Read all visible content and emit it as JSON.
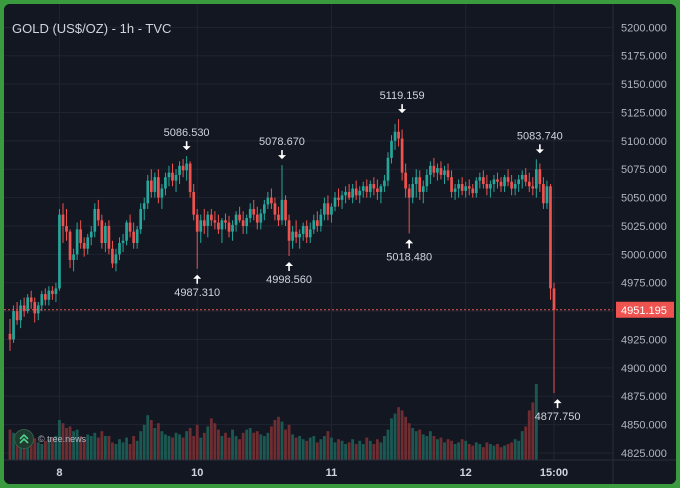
{
  "chart_data": {
    "type": "candlestick",
    "title": "GOLD (US$/OZ) - 1h - TVC",
    "ylim": [
      4825,
      5210
    ],
    "y_ticks": [
      5200,
      5175,
      5150,
      5125,
      5100,
      5075,
      5050,
      5025,
      5000,
      4975,
      4950,
      4925,
      4900,
      4875,
      4850,
      4825
    ],
    "y_tick_labels": [
      "5200.000",
      "5175.000",
      "5150.000",
      "5125.000",
      "5100.000",
      "5075.000",
      "5050.000",
      "5025.000",
      "5000.000",
      "4975.000",
      "4950.000",
      "4925.000",
      "4900.000",
      "4875.000",
      "4850.000",
      "4825.000"
    ],
    "x_ticks": [
      {
        "label": "8",
        "index": 14
      },
      {
        "label": "10",
        "index": 53
      },
      {
        "label": "11",
        "index": 91
      },
      {
        "label": "12",
        "index": 129
      },
      {
        "label": "15:00",
        "index": 154
      }
    ],
    "current_price": 4951.195,
    "current_price_label": "4951.195",
    "annotations": [
      {
        "label": "5086.530",
        "index": 50,
        "value": 5086.53,
        "direction": "down"
      },
      {
        "label": "4987.310",
        "index": 53,
        "value": 4987.31,
        "direction": "up"
      },
      {
        "label": "5078.670",
        "index": 77,
        "value": 5078.67,
        "direction": "down"
      },
      {
        "label": "4998.560",
        "index": 79,
        "value": 4998.56,
        "direction": "up"
      },
      {
        "label": "5119.159",
        "index": 111,
        "value": 5119.159,
        "direction": "down"
      },
      {
        "label": "5018.480",
        "index": 113,
        "value": 5018.48,
        "direction": "up"
      },
      {
        "label": "5083.740",
        "index": 150,
        "value": 5083.74,
        "direction": "down"
      },
      {
        "label": "4877.750",
        "index": 155,
        "value": 4877.75,
        "direction": "up"
      }
    ],
    "candles": [
      [
        4930,
        4943,
        4915,
        4925
      ],
      [
        4925,
        4955,
        4922,
        4950
      ],
      [
        4950,
        4958,
        4938,
        4942
      ],
      [
        4942,
        4960,
        4935,
        4955
      ],
      [
        4955,
        4962,
        4945,
        4950
      ],
      [
        4950,
        4965,
        4948,
        4962
      ],
      [
        4962,
        4968,
        4952,
        4958
      ],
      [
        4958,
        4962,
        4940,
        4948
      ],
      [
        4948,
        4958,
        4942,
        4955
      ],
      [
        4955,
        4968,
        4950,
        4965
      ],
      [
        4965,
        4970,
        4955,
        4960
      ],
      [
        4960,
        4972,
        4955,
        4968
      ],
      [
        4968,
        4972,
        4960,
        4965
      ],
      [
        4965,
        4975,
        4958,
        4970
      ],
      [
        4970,
        5040,
        4968,
        5035
      ],
      [
        5035,
        5045,
        5010,
        5025
      ],
      [
        5025,
        5040,
        5012,
        5020
      ],
      [
        5020,
        5022,
        4988,
        4995
      ],
      [
        4995,
        5005,
        4985,
        5000
      ],
      [
        5000,
        5028,
        4995,
        5022
      ],
      [
        5022,
        5030,
        5005,
        5010
      ],
      [
        5010,
        5015,
        4998,
        5005
      ],
      [
        5005,
        5018,
        5000,
        5015
      ],
      [
        5015,
        5025,
        5008,
        5020
      ],
      [
        5020,
        5045,
        5015,
        5040
      ],
      [
        5040,
        5048,
        5025,
        5030
      ],
      [
        5030,
        5035,
        5005,
        5010
      ],
      [
        5010,
        5028,
        5002,
        5025
      ],
      [
        5025,
        5030,
        5000,
        5005
      ],
      [
        5005,
        5012,
        4988,
        4992
      ],
      [
        4992,
        5005,
        4985,
        5000
      ],
      [
        5000,
        5015,
        4995,
        5010
      ],
      [
        5010,
        5018,
        5002,
        5012
      ],
      [
        5012,
        5030,
        5008,
        5028
      ],
      [
        5028,
        5035,
        5015,
        5020
      ],
      [
        5020,
        5028,
        5005,
        5010
      ],
      [
        5010,
        5025,
        5005,
        5022
      ],
      [
        5022,
        5045,
        5018,
        5040
      ],
      [
        5040,
        5050,
        5030,
        5045
      ],
      [
        5045,
        5070,
        5040,
        5065
      ],
      [
        5065,
        5075,
        5050,
        5055
      ],
      [
        5055,
        5072,
        5050,
        5068
      ],
      [
        5068,
        5075,
        5045,
        5050
      ],
      [
        5050,
        5062,
        5040,
        5058
      ],
      [
        5058,
        5072,
        5052,
        5068
      ],
      [
        5068,
        5078,
        5060,
        5072
      ],
      [
        5072,
        5080,
        5060,
        5065
      ],
      [
        5065,
        5075,
        5055,
        5070
      ],
      [
        5070,
        5082,
        5062,
        5078
      ],
      [
        5078,
        5084,
        5068,
        5074
      ],
      [
        5074,
        5086.53,
        5065,
        5080
      ],
      [
        5080,
        5082,
        5050,
        5055
      ],
      [
        5055,
        5062,
        5030,
        5035
      ],
      [
        5035,
        5040,
        4987.31,
        5020
      ],
      [
        5020,
        5035,
        5010,
        5030
      ],
      [
        5030,
        5040,
        5018,
        5025
      ],
      [
        5025,
        5038,
        5015,
        5035
      ],
      [
        5035,
        5040,
        5025,
        5030
      ],
      [
        5030,
        5038,
        5022,
        5028
      ],
      [
        5028,
        5035,
        5018,
        5022
      ],
      [
        5022,
        5032,
        5010,
        5030
      ],
      [
        5030,
        5036,
        5022,
        5028
      ],
      [
        5028,
        5034,
        5015,
        5020
      ],
      [
        5020,
        5030,
        5012,
        5026
      ],
      [
        5026,
        5038,
        5020,
        5035
      ],
      [
        5035,
        5042,
        5028,
        5030
      ],
      [
        5030,
        5038,
        5018,
        5025
      ],
      [
        5025,
        5035,
        5018,
        5032
      ],
      [
        5032,
        5045,
        5028,
        5040
      ],
      [
        5040,
        5048,
        5030,
        5035
      ],
      [
        5035,
        5042,
        5022,
        5028
      ],
      [
        5028,
        5040,
        5022,
        5036
      ],
      [
        5036,
        5048,
        5030,
        5044
      ],
      [
        5044,
        5055,
        5040,
        5050
      ],
      [
        5050,
        5058,
        5040,
        5045
      ],
      [
        5045,
        5050,
        5030,
        5035
      ],
      [
        5035,
        5042,
        5025,
        5030
      ],
      [
        5030,
        5078.67,
        5026,
        5048
      ],
      [
        5048,
        5052,
        5025,
        5030
      ],
      [
        5030,
        5035,
        4998.56,
        5012
      ],
      [
        5012,
        5025,
        5005,
        5020
      ],
      [
        5020,
        5030,
        5010,
        5015
      ],
      [
        5015,
        5022,
        5005,
        5018
      ],
      [
        5018,
        5028,
        5012,
        5025
      ],
      [
        5025,
        5030,
        5010,
        5015
      ],
      [
        5015,
        5028,
        5010,
        5022
      ],
      [
        5022,
        5035,
        5018,
        5030
      ],
      [
        5030,
        5038,
        5020,
        5025
      ],
      [
        5025,
        5040,
        5020,
        5035
      ],
      [
        5035,
        5050,
        5030,
        5045
      ],
      [
        5045,
        5052,
        5030,
        5035
      ],
      [
        5035,
        5045,
        5028,
        5042
      ],
      [
        5042,
        5055,
        5038,
        5050
      ],
      [
        5050,
        5058,
        5042,
        5048
      ],
      [
        5048,
        5056,
        5040,
        5052
      ],
      [
        5052,
        5060,
        5045,
        5055
      ],
      [
        5055,
        5062,
        5048,
        5050
      ],
      [
        5050,
        5062,
        5045,
        5058
      ],
      [
        5058,
        5065,
        5048,
        5052
      ],
      [
        5052,
        5060,
        5045,
        5056
      ],
      [
        5056,
        5064,
        5050,
        5060
      ],
      [
        5060,
        5066,
        5050,
        5055
      ],
      [
        5055,
        5065,
        5050,
        5062
      ],
      [
        5062,
        5068,
        5052,
        5058
      ],
      [
        5058,
        5066,
        5048,
        5055
      ],
      [
        5055,
        5062,
        5045,
        5060
      ],
      [
        5060,
        5070,
        5055,
        5065
      ],
      [
        5065,
        5090,
        5060,
        5085
      ],
      [
        5085,
        5105,
        5080,
        5100
      ],
      [
        5100,
        5115,
        5092,
        5108
      ],
      [
        5108,
        5119.159,
        5095,
        5102
      ],
      [
        5102,
        5110,
        5065,
        5072
      ],
      [
        5072,
        5080,
        5050,
        5058
      ],
      [
        5058,
        5062,
        5018.48,
        5050
      ],
      [
        5050,
        5068,
        5045,
        5062
      ],
      [
        5062,
        5075,
        5050,
        5068
      ],
      [
        5068,
        5074,
        5048,
        5055
      ],
      [
        5055,
        5065,
        5045,
        5060
      ],
      [
        5060,
        5075,
        5055,
        5070
      ],
      [
        5070,
        5082,
        5062,
        5078
      ],
      [
        5078,
        5085,
        5068,
        5072
      ],
      [
        5072,
        5080,
        5065,
        5076
      ],
      [
        5076,
        5082,
        5066,
        5070
      ],
      [
        5070,
        5078,
        5062,
        5074
      ],
      [
        5074,
        5080,
        5065,
        5068
      ],
      [
        5068,
        5074,
        5050,
        5055
      ],
      [
        5055,
        5062,
        5048,
        5058
      ],
      [
        5058,
        5066,
        5050,
        5062
      ],
      [
        5062,
        5068,
        5052,
        5056
      ],
      [
        5056,
        5064,
        5050,
        5060
      ],
      [
        5060,
        5066,
        5052,
        5058
      ],
      [
        5058,
        5062,
        5050,
        5054
      ],
      [
        5054,
        5068,
        5050,
        5065
      ],
      [
        5065,
        5072,
        5058,
        5068
      ],
      [
        5068,
        5074,
        5058,
        5062
      ],
      [
        5062,
        5070,
        5052,
        5058
      ],
      [
        5058,
        5065,
        5050,
        5062
      ],
      [
        5062,
        5070,
        5055,
        5066
      ],
      [
        5066,
        5072,
        5058,
        5064
      ],
      [
        5064,
        5068,
        5055,
        5060
      ],
      [
        5060,
        5070,
        5055,
        5068
      ],
      [
        5068,
        5075,
        5060,
        5064
      ],
      [
        5064,
        5070,
        5052,
        5058
      ],
      [
        5058,
        5066,
        5052,
        5062
      ],
      [
        5062,
        5070,
        5055,
        5066
      ],
      [
        5066,
        5074,
        5058,
        5070
      ],
      [
        5070,
        5076,
        5060,
        5064
      ],
      [
        5064,
        5072,
        5055,
        5060
      ],
      [
        5060,
        5068,
        5052,
        5058
      ],
      [
        5058,
        5083.74,
        5050,
        5075
      ],
      [
        5075,
        5080,
        5055,
        5062
      ],
      [
        5062,
        5068,
        5040,
        5045
      ],
      [
        5045,
        5065,
        5040,
        5060
      ],
      [
        5060,
        5062,
        4960,
        4970
      ],
      [
        4970,
        4975,
        4877.75,
        4951.195
      ]
    ],
    "volume": [
      0.38,
      0.34,
      0.3,
      0.36,
      0.28,
      0.24,
      0.3,
      0.27,
      0.22,
      0.2,
      0.24,
      0.26,
      0.28,
      0.3,
      0.5,
      0.46,
      0.4,
      0.42,
      0.36,
      0.38,
      0.3,
      0.26,
      0.32,
      0.3,
      0.34,
      0.28,
      0.36,
      0.3,
      0.3,
      0.22,
      0.2,
      0.26,
      0.22,
      0.28,
      0.2,
      0.3,
      0.24,
      0.36,
      0.44,
      0.56,
      0.5,
      0.4,
      0.46,
      0.36,
      0.32,
      0.3,
      0.28,
      0.34,
      0.32,
      0.28,
      0.36,
      0.4,
      0.3,
      0.44,
      0.28,
      0.34,
      0.42,
      0.52,
      0.46,
      0.38,
      0.3,
      0.34,
      0.28,
      0.38,
      0.3,
      0.26,
      0.34,
      0.38,
      0.4,
      0.34,
      0.36,
      0.32,
      0.3,
      0.34,
      0.42,
      0.5,
      0.54,
      0.48,
      0.38,
      0.44,
      0.32,
      0.28,
      0.3,
      0.26,
      0.24,
      0.28,
      0.3,
      0.22,
      0.26,
      0.3,
      0.36,
      0.28,
      0.22,
      0.26,
      0.24,
      0.2,
      0.22,
      0.26,
      0.2,
      0.24,
      0.2,
      0.28,
      0.24,
      0.2,
      0.26,
      0.22,
      0.3,
      0.38,
      0.52,
      0.58,
      0.66,
      0.62,
      0.54,
      0.46,
      0.4,
      0.36,
      0.38,
      0.32,
      0.3,
      0.36,
      0.3,
      0.26,
      0.28,
      0.22,
      0.26,
      0.24,
      0.2,
      0.22,
      0.26,
      0.24,
      0.2,
      0.18,
      0.22,
      0.2,
      0.16,
      0.22,
      0.2,
      0.18,
      0.2,
      0.16,
      0.18,
      0.2,
      0.22,
      0.26,
      0.24,
      0.36,
      0.42,
      0.62,
      0.72,
      0.95
    ],
    "colors": {
      "up": "#26a69a",
      "down": "#ef5350",
      "background": "#131722",
      "grid": "#1f2430",
      "text": "#d1d4dc",
      "axis_text": "#b2b5be"
    }
  },
  "watermark": {
    "text": "© tree.news",
    "icon": "chevron-up-double-icon"
  }
}
